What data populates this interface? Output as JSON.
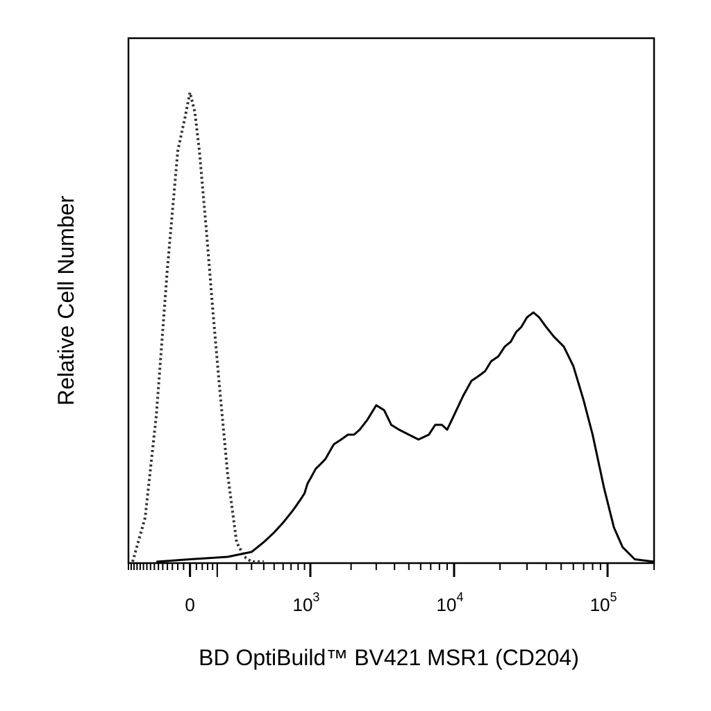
{
  "chart_data": {
    "type": "line",
    "title": "",
    "xlabel": "BD OptiBuild™ BV421 MSR1 (CD204)",
    "ylabel": "Relative Cell Number",
    "x_scale": "biexponential",
    "xlim": [
      -300,
      200000
    ],
    "ylim": [
      0,
      100
    ],
    "grid": false,
    "legend": "none",
    "x_ticks": [
      {
        "value": 0,
        "base": "0",
        "exp": ""
      },
      {
        "value": 1000,
        "base": "10",
        "exp": "3"
      },
      {
        "value": 10000,
        "base": "10",
        "exp": "4"
      },
      {
        "value": 100000,
        "base": "10",
        "exp": "5"
      }
    ],
    "series": [
      {
        "style": "dotted",
        "color": "#333333",
        "x": [
          -270,
          -190,
          -130,
          -80,
          -40,
          -15,
          0,
          15,
          30,
          55,
          80,
          110,
          150,
          200,
          250,
          300,
          400
        ],
        "y": [
          0,
          9,
          30,
          60,
          84,
          91,
          96,
          92,
          84,
          68,
          52,
          36,
          18,
          4,
          1,
          0,
          0
        ]
      },
      {
        "style": "solid",
        "color": "#000000",
        "x": [
          -130,
          0,
          150,
          300,
          400,
          500,
          600,
          700,
          750,
          800,
          850,
          900,
          950,
          1000,
          1100,
          1200,
          1300,
          1500,
          1700,
          1900,
          2100,
          2300,
          2600,
          3000,
          3400,
          3800,
          4300,
          5000,
          5800,
          6800,
          7500,
          8300,
          9000,
          10000,
          11500,
          13000,
          14500,
          16000,
          17500,
          19500,
          21500,
          23500,
          25500,
          27500,
          30000,
          33000,
          36000,
          40000,
          45000,
          52000,
          60000,
          70000,
          80000,
          95000,
          110000,
          125000,
          150000,
          200000
        ],
        "y": [
          0,
          0.5,
          1,
          2,
          4,
          6,
          8,
          10,
          11,
          12,
          13,
          14,
          16,
          17,
          19,
          20,
          21,
          24,
          25,
          26,
          26,
          27,
          29,
          32,
          31,
          28,
          27,
          26,
          25,
          26,
          28,
          28,
          27,
          30,
          34,
          37,
          38,
          39,
          41,
          42,
          44,
          45,
          47,
          48,
          50,
          51,
          50,
          48,
          46,
          44,
          40,
          33,
          26,
          15,
          7,
          3,
          0.5,
          0
        ]
      }
    ]
  }
}
